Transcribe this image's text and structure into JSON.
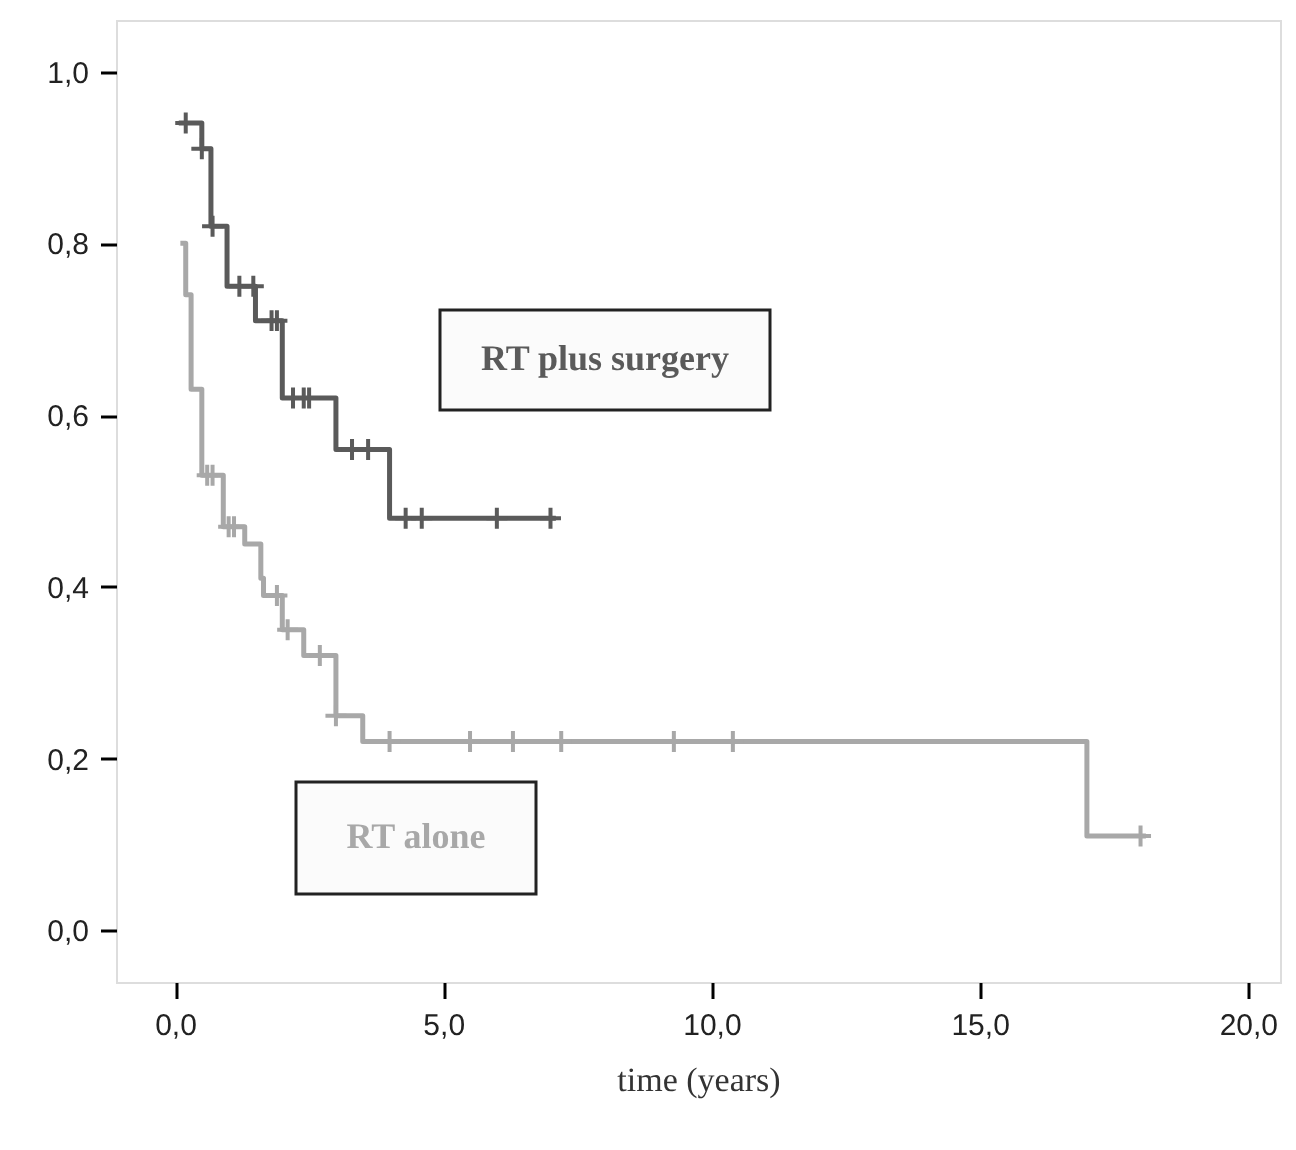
{
  "chart_data": {
    "type": "step",
    "xlabel": "time (years)",
    "xlim": [
      -1.1,
      20.6
    ],
    "ylim": [
      -0.06,
      1.06
    ],
    "xticks": [
      {
        "value": 0,
        "label": "0,0"
      },
      {
        "value": 5,
        "label": "5,0"
      },
      {
        "value": 10,
        "label": "10,0"
      },
      {
        "value": 15,
        "label": "15,0"
      },
      {
        "value": 20,
        "label": "20,0"
      }
    ],
    "yticks": [
      {
        "value": 0,
        "label": "0,0"
      },
      {
        "value": 0.2,
        "label": "0,2"
      },
      {
        "value": 0.4,
        "label": "0,4"
      },
      {
        "value": 0.6,
        "label": "0,6"
      },
      {
        "value": 0.8,
        "label": "0,8"
      },
      {
        "value": 1,
        "label": "1,0"
      }
    ],
    "line_style": "solid",
    "series": [
      {
        "name": "RT plus surgery",
        "color": "#5a5a5a",
        "x": [
          0.07,
          0.5,
          0.67,
          0.97,
          1.5,
          2.0,
          3.0,
          4.0,
          7.1
        ],
        "values": [
          0.94,
          0.91,
          0.82,
          0.75,
          0.71,
          0.62,
          0.56,
          0.48,
          0.48
        ]
      },
      {
        "name": "RT alone",
        "color": "#a8a8a8",
        "x": [
          0.1,
          0.2,
          0.3,
          0.5,
          0.9,
          1.3,
          1.6,
          1.65,
          2.0,
          2.4,
          3.0,
          3.5,
          17.0,
          18.1
        ],
        "values": [
          0.8,
          0.74,
          0.63,
          0.53,
          0.47,
          0.45,
          0.41,
          0.39,
          0.35,
          0.32,
          0.25,
          0.22,
          0.11,
          0.11
        ]
      },
      {
        "type": "scatter",
        "marker": "cross",
        "color": "#5a5a5a",
        "x": [
          0.2,
          0.5,
          0.7,
          1.2,
          1.46,
          1.8,
          1.9,
          2.2,
          2.4,
          2.5,
          3.3,
          3.6,
          4.3,
          4.6,
          6.0,
          7.0
        ],
        "values": [
          0.94,
          0.91,
          0.82,
          0.75,
          0.75,
          0.71,
          0.71,
          0.62,
          0.62,
          0.62,
          0.56,
          0.56,
          0.48,
          0.48,
          0.48,
          0.48
        ]
      },
      {
        "type": "scatter",
        "marker": "cross",
        "color": "#a8a8a8",
        "x": [
          0.6,
          0.7,
          1.0,
          1.1,
          1.9,
          2.1,
          2.7,
          3.0,
          4.0,
          5.5,
          6.3,
          7.2,
          9.3,
          10.4,
          18.0
        ],
        "values": [
          0.53,
          0.53,
          0.47,
          0.47,
          0.39,
          0.35,
          0.32,
          0.25,
          0.22,
          0.22,
          0.22,
          0.22,
          0.22,
          0.22,
          0.11
        ]
      }
    ]
  }
}
